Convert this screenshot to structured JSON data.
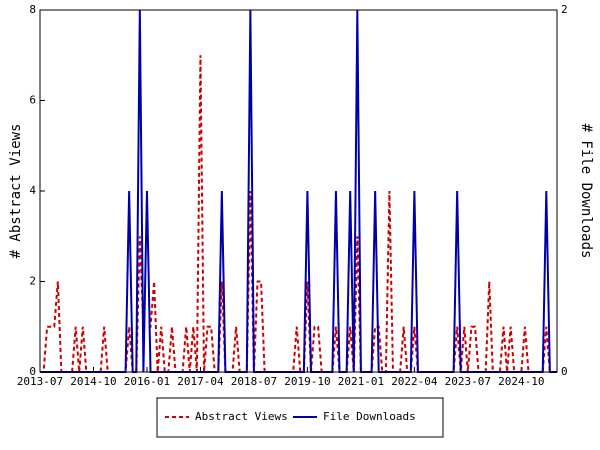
{
  "chart_data": {
    "type": "line",
    "ylabel": "# Abstract Views",
    "y2label": "# File Downloads",
    "categories": [
      "2013-07",
      null,
      null,
      null,
      null,
      null,
      null,
      null,
      null,
      null,
      null,
      null,
      null,
      null,
      null,
      "2014-10",
      null,
      null,
      null,
      null,
      null,
      null,
      null,
      null,
      null,
      null,
      null,
      null,
      null,
      null,
      "2016-01",
      null,
      null,
      null,
      null,
      null,
      null,
      null,
      null,
      null,
      null,
      null,
      null,
      null,
      null,
      "2017-04",
      null,
      null,
      null,
      null,
      null,
      null,
      null,
      null,
      null,
      null,
      null,
      null,
      null,
      null,
      "2018-07",
      null,
      null,
      null,
      null,
      null,
      null,
      null,
      null,
      null,
      null,
      null,
      null,
      null,
      null,
      "2019-10",
      null,
      null,
      null,
      null,
      null,
      null,
      null,
      null,
      null,
      null,
      null,
      null,
      null,
      null,
      "2021-01",
      null,
      null,
      null,
      null,
      null,
      null,
      null,
      null,
      null,
      null,
      null,
      null,
      null,
      null,
      "2022-04",
      null,
      null,
      null,
      null,
      null,
      null,
      null,
      null,
      null,
      null,
      null,
      null,
      null,
      null,
      "2023-07",
      null,
      null,
      null,
      null,
      null,
      null,
      null,
      null,
      null,
      null,
      null,
      null,
      null,
      null,
      "2024-10",
      null,
      null,
      null,
      null,
      null,
      null,
      null,
      null,
      null,
      null
    ],
    "series": [
      {
        "name": "Abstract Views",
        "color": "#cc0000",
        "dash": true,
        "values": [
          0,
          0,
          1,
          1,
          1,
          2,
          0,
          0,
          0,
          0,
          1,
          0,
          1,
          0,
          0,
          0,
          0,
          0,
          1,
          0,
          0,
          0,
          0,
          0,
          0,
          1,
          0,
          0,
          3,
          1,
          1,
          1,
          2,
          0,
          1,
          0,
          0,
          1,
          0,
          0,
          0,
          1,
          0,
          1,
          0,
          7,
          0,
          1,
          1,
          0,
          0,
          2,
          0,
          0,
          0,
          1,
          0,
          0,
          0,
          4,
          0,
          2,
          2,
          0,
          0,
          0,
          0,
          0,
          0,
          0,
          0,
          0,
          1,
          0,
          0,
          2,
          0,
          1,
          1,
          0,
          0,
          0,
          0,
          1,
          0,
          0,
          0,
          1,
          0,
          3,
          0,
          0,
          0,
          0,
          1,
          1,
          0,
          0,
          4,
          0,
          0,
          0,
          1,
          0,
          0,
          1,
          0,
          0,
          0,
          0,
          0,
          0,
          0,
          0,
          0,
          0,
          0,
          1,
          0,
          1,
          0,
          1,
          1,
          0,
          0,
          0,
          2,
          0,
          0,
          0,
          1,
          0,
          1,
          0,
          0,
          0,
          1,
          0,
          0,
          0,
          0,
          0,
          1,
          0,
          0,
          0
        ]
      },
      {
        "name": "File Downloads",
        "color": "#0000aa",
        "dash": false,
        "axis": "y2",
        "values": [
          0,
          0,
          0,
          0,
          0,
          0,
          0,
          0,
          0,
          0,
          0,
          0,
          0,
          0,
          0,
          0,
          0,
          0,
          0,
          0,
          0,
          0,
          0,
          0,
          0,
          1,
          0,
          0,
          2,
          0,
          1,
          0,
          0,
          0,
          0,
          0,
          0,
          0,
          0,
          0,
          0,
          0,
          0,
          0,
          0,
          0,
          0,
          0,
          0,
          0,
          0,
          1,
          0,
          0,
          0,
          0,
          0,
          0,
          0,
          2,
          0,
          0,
          0,
          0,
          0,
          0,
          0,
          0,
          0,
          0,
          0,
          0,
          0,
          0,
          0,
          1,
          0,
          0,
          0,
          0,
          0,
          0,
          0,
          1,
          0,
          0,
          0,
          1,
          0,
          2,
          0,
          0,
          0,
          0,
          1,
          0,
          0,
          0,
          0,
          0,
          0,
          0,
          0,
          0,
          0,
          1,
          0,
          0,
          0,
          0,
          0,
          0,
          0,
          0,
          0,
          0,
          0,
          1,
          0,
          0,
          0,
          0,
          0,
          0,
          0,
          0,
          0,
          0,
          0,
          0,
          0,
          0,
          0,
          0,
          0,
          0,
          0,
          0,
          0,
          0,
          0,
          0,
          1,
          0,
          0,
          0
        ]
      }
    ],
    "ylim": [
      0,
      8
    ],
    "yticks": [
      0,
      2,
      4,
      6,
      8
    ],
    "y2lim": [
      0,
      2
    ],
    "y2ticks": [
      0,
      2
    ]
  }
}
